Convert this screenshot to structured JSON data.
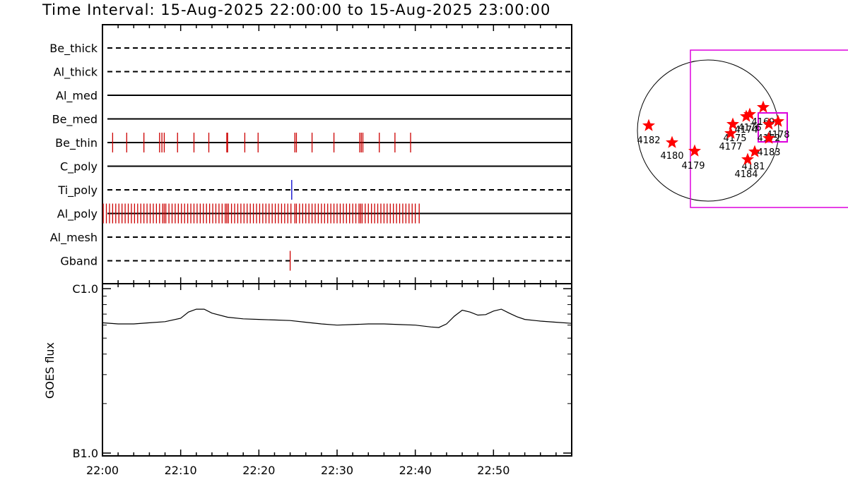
{
  "title": "Time Interval: 15-Aug-2025 22:00:00 to 15-Aug-2025 23:00:00",
  "colors": {
    "event": "#cc0000",
    "blue_event": "#0000cc",
    "fov": "#dd00dd",
    "star": "#ff0000"
  },
  "chart_data": [
    {
      "type": "event_raster",
      "x_range_minutes": [
        0,
        60
      ],
      "x_ticks": [
        "22:00",
        "22:10",
        "22:20",
        "22:30",
        "22:40",
        "22:50"
      ],
      "channels": [
        {
          "name": "Be_thick",
          "line": "dashed",
          "events": []
        },
        {
          "name": "Al_thick",
          "line": "dashed",
          "events": []
        },
        {
          "name": "Al_med",
          "line": "solid",
          "events": []
        },
        {
          "name": "Be_med",
          "line": "solid",
          "events": []
        },
        {
          "name": "Be_thin",
          "line": "solid",
          "events": [
            1.3,
            3.1,
            5.3,
            7.3,
            7.6,
            7.9,
            9.6,
            11.7,
            13.6,
            15.9,
            16.0,
            18.2,
            19.9,
            24.6,
            24.8,
            26.8,
            29.6,
            32.9,
            33.1,
            33.3,
            35.4,
            37.4,
            39.4
          ]
        },
        {
          "name": "C_poly",
          "line": "solid",
          "events": []
        },
        {
          "name": "Ti_poly",
          "line": "dashed",
          "events": [
            24.2
          ],
          "event_color": "blue"
        },
        {
          "name": "Al_poly",
          "line": "solid",
          "events": [
            0.1,
            0.5,
            0.9,
            1.3,
            1.7,
            2.1,
            2.5,
            2.9,
            3.3,
            3.7,
            4.1,
            4.5,
            4.9,
            5.3,
            5.7,
            6.1,
            6.5,
            6.9,
            7.3,
            7.7,
            7.9,
            8.1,
            8.5,
            8.9,
            9.3,
            9.7,
            10.1,
            10.5,
            10.9,
            11.3,
            11.7,
            12.1,
            12.5,
            12.9,
            13.3,
            13.7,
            14.1,
            14.5,
            14.9,
            15.3,
            15.7,
            15.9,
            16.1,
            16.5,
            16.9,
            17.3,
            17.7,
            18.1,
            18.5,
            18.9,
            19.3,
            19.7,
            20.1,
            20.5,
            20.9,
            21.3,
            21.7,
            22.1,
            22.5,
            22.9,
            23.3,
            23.7,
            24.1,
            24.6,
            24.8,
            25.2,
            25.6,
            26.0,
            26.4,
            26.8,
            27.2,
            27.6,
            28.0,
            28.4,
            28.8,
            29.2,
            29.6,
            30.0,
            30.4,
            30.8,
            31.2,
            31.6,
            32.0,
            32.4,
            32.8,
            33.0,
            33.2,
            33.6,
            34.0,
            34.4,
            34.8,
            35.2,
            35.6,
            36.0,
            36.4,
            36.8,
            37.2,
            37.6,
            38.0,
            38.4,
            38.8,
            39.2,
            39.6,
            40.0,
            40.5
          ]
        },
        {
          "name": "Al_mesh",
          "line": "dashed",
          "events": []
        },
        {
          "name": "Gband",
          "line": "dashed",
          "events": [
            24.0
          ]
        }
      ]
    },
    {
      "type": "line",
      "ylabel": "GOES flux",
      "y_scale": "log",
      "y_tick_labels": [
        "C1.0",
        "B1.0"
      ],
      "ylim_flux": [
        1e-07,
        1e-06
      ],
      "x_range_minutes": [
        0,
        60
      ],
      "x_ticks": [
        "22:00",
        "22:10",
        "22:20",
        "22:30",
        "22:40",
        "22:50"
      ],
      "series": [
        {
          "x": [
            0,
            2,
            4,
            6,
            8,
            10,
            11,
            12,
            13,
            14,
            16,
            18,
            20,
            22,
            24,
            26,
            28,
            30,
            32,
            34,
            36,
            38,
            40,
            42,
            43,
            44,
            45,
            46,
            47,
            48,
            49,
            50,
            51,
            52,
            53,
            54,
            56,
            58,
            60
          ],
          "y": [
            6.2e-07,
            6.1e-07,
            6.1e-07,
            6.2e-07,
            6.3e-07,
            6.6e-07,
            7.2e-07,
            7.5e-07,
            7.5e-07,
            7.1e-07,
            6.7e-07,
            6.55e-07,
            6.5e-07,
            6.45e-07,
            6.4e-07,
            6.25e-07,
            6.1e-07,
            6e-07,
            6.05e-07,
            6.1e-07,
            6.1e-07,
            6.05e-07,
            6e-07,
            5.85e-07,
            5.8e-07,
            6.1e-07,
            6.8e-07,
            7.4e-07,
            7.2e-07,
            6.9e-07,
            6.95e-07,
            7.3e-07,
            7.5e-07,
            7.1e-07,
            6.75e-07,
            6.5e-07,
            6.35e-07,
            6.25e-07,
            6.15e-07
          ]
        }
      ]
    },
    {
      "type": "scatter",
      "subject": "solar_disk_active_regions",
      "points": [
        {
          "label": "4182",
          "x": 0.082,
          "y": 0.52
        },
        {
          "label": "4180",
          "x": 0.272,
          "y": 0.37
        },
        {
          "label": "4179",
          "x": 0.468,
          "y": 0.28
        },
        {
          "label": "4175",
          "x": 0.778,
          "y": 0.58
        },
        {
          "label": "4177",
          "x": 0.766,
          "y": 0.46
        },
        {
          "label": "4174",
          "x": 0.826,
          "y": 0.6
        },
        {
          "label": "4176",
          "x": 0.9,
          "y": 0.67
        },
        {
          "label": "4169",
          "x": 0.935,
          "y": 0.73
        },
        {
          "label": "4172",
          "x": 1.044,
          "y": 0.53
        },
        {
          "label": "4178",
          "x": 1.092,
          "y": 0.56
        },
        {
          "label": "4183",
          "x": 0.934,
          "y": 0.2
        },
        {
          "label": "4181",
          "x": 0.871,
          "y": 0.11
        },
        {
          "label": "4184",
          "x": 1.18,
          "y": 0.72
        }
      ]
    }
  ]
}
